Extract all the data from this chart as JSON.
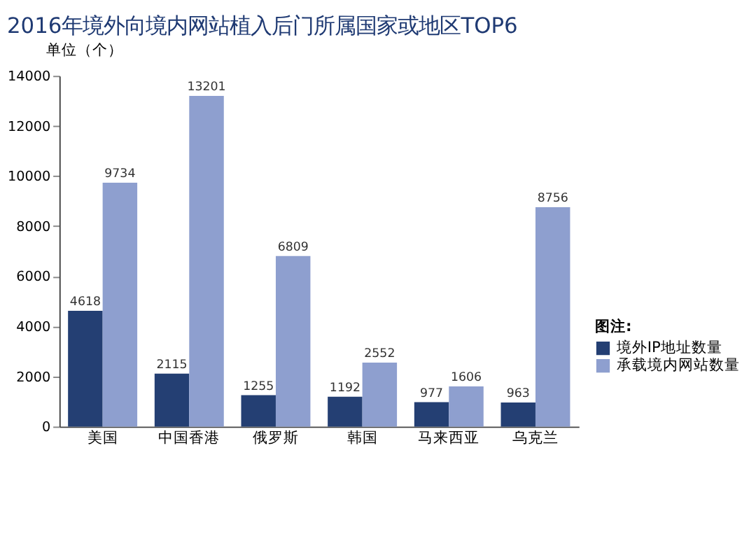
{
  "chart_data": {
    "type": "bar",
    "title": "2016年境外向境内网站植入后门所属国家或地区TOP6",
    "ylabel": "单位（个）",
    "legend_title": "图注:",
    "categories": [
      "美国",
      "中国香港",
      "俄罗斯",
      "韩国",
      "马来西亚",
      "乌克兰"
    ],
    "series": [
      {
        "name": "境外IP地址数量",
        "color": "#243f73",
        "values": [
          4618,
          2115,
          1255,
          1192,
          977,
          963
        ]
      },
      {
        "name": "承载境内网站数量",
        "color": "#8e9fcf",
        "values": [
          9734,
          13201,
          6809,
          2552,
          1606,
          8756
        ]
      }
    ],
    "ylim": [
      0,
      14000
    ],
    "yticks": [
      0,
      2000,
      4000,
      6000,
      8000,
      10000,
      12000,
      14000
    ],
    "grid": false,
    "legend": "right",
    "data_labels": true
  }
}
